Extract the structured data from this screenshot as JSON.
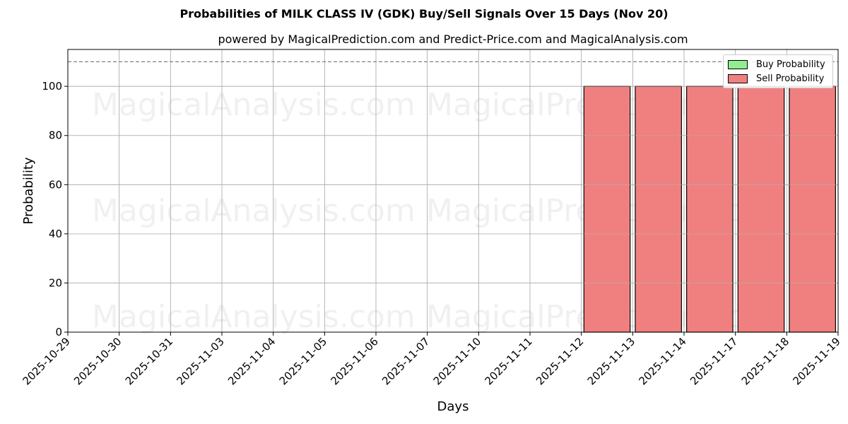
{
  "header": {
    "title": "Probabilities of MILK CLASS IV (GDK) Buy/Sell Signals Over 15 Days (Nov 20)",
    "subtitle": "powered by MagicalPrediction.com and Predict-Price.com and MagicalAnalysis.com"
  },
  "watermarks": [
    "MagicalAnalysis.com",
    "MagicalPrediction.com"
  ],
  "legend": {
    "buy_label": "Buy Probability",
    "sell_label": "Sell Probability"
  },
  "colors": {
    "buy": "#90EE90",
    "sell": "#F08080",
    "threshold": "#808080"
  },
  "chart_data": {
    "type": "bar",
    "title": "Probabilities of MILK CLASS IV (GDK) Buy/Sell Signals Over 15 Days (Nov 20)",
    "subtitle": "powered by MagicalPrediction.com and Predict-Price.com and MagicalAnalysis.com",
    "xlabel": "Days",
    "ylabel": "Probability",
    "ylim": [
      0,
      115
    ],
    "yticks": [
      0,
      20,
      40,
      60,
      80,
      100
    ],
    "grid": true,
    "legend_position": "upper right",
    "threshold_line": 110,
    "categories": [
      "2025-10-29",
      "2025-10-30",
      "2025-10-31",
      "2025-11-03",
      "2025-11-04",
      "2025-11-05",
      "2025-11-06",
      "2025-11-07",
      "2025-11-10",
      "2025-11-11",
      "2025-11-12",
      "2025-11-13",
      "2025-11-14",
      "2025-11-17",
      "2025-11-18",
      "2025-11-19"
    ],
    "series": [
      {
        "name": "Buy Probability",
        "color": "#90EE90",
        "values": [
          0,
          0,
          0,
          0,
          0,
          0,
          0,
          0,
          0,
          0,
          0,
          0,
          0,
          0,
          0,
          0
        ]
      },
      {
        "name": "Sell Probability",
        "color": "#F08080",
        "values": [
          0,
          0,
          0,
          0,
          0,
          0,
          0,
          0,
          0,
          0,
          100,
          100,
          100,
          100,
          100,
          0
        ]
      }
    ]
  }
}
